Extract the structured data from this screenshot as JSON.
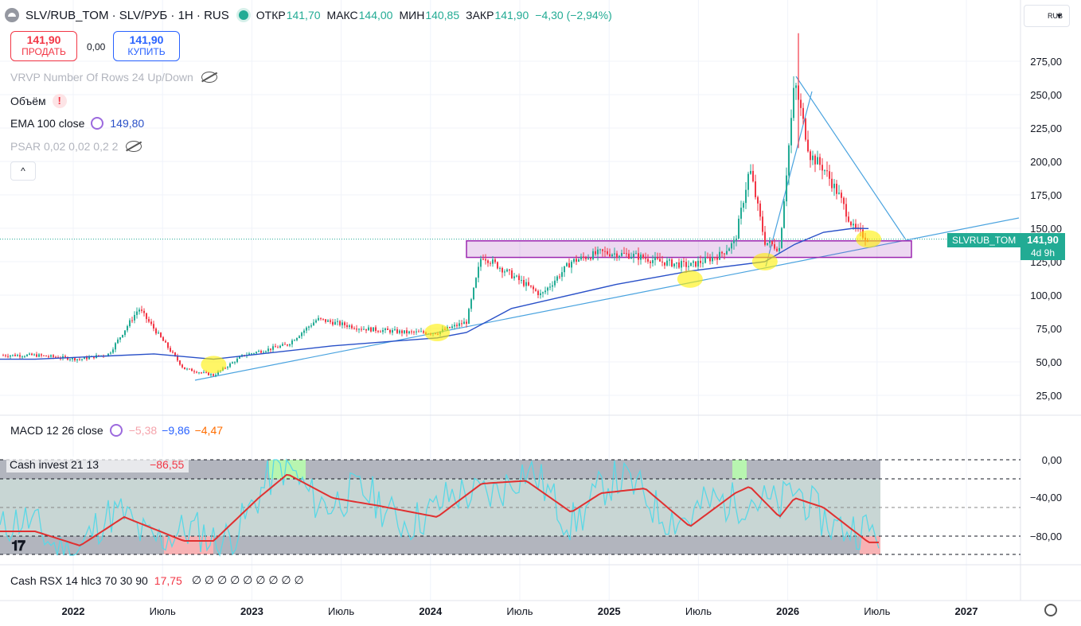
{
  "header": {
    "symbol": "SLV/RUB_TOM · SLV/РУБ · 1H · RUS",
    "open_label": "ОТКР",
    "open_value": "141,70",
    "high_label": "МАКС",
    "high_value": "144,00",
    "low_label": "МИН",
    "low_value": "140,85",
    "close_label": "ЗАКР",
    "close_value": "141,90",
    "change": "−4,30 (−2,94%)",
    "currency": "RUB"
  },
  "trade": {
    "sell_price": "141,90",
    "sell_label": "ПРОДАТЬ",
    "spread": "0,00",
    "buy_price": "141,90",
    "buy_label": "КУПИТЬ"
  },
  "indicators": {
    "vrvp": "VRVP Number Of Rows 24 Up/Down",
    "volume": "Объём",
    "volume_warn": "!",
    "ema_label": "EMA 100 close",
    "ema_value": "149,80",
    "psar": "PSAR 0,02 0,02 0,2 2",
    "collapse": "^"
  },
  "macd": {
    "label": "MACD 12 26 close",
    "v1": "−5,38",
    "v2": "−9,86",
    "v3": "−4,47"
  },
  "cash_invest": {
    "label": "Cash invest 21 13",
    "value": "−86,55"
  },
  "cash_rsx": {
    "label": "Cash RSX 14 hlc3 70 30 90",
    "value": "17,75",
    "zeros": "∅ ∅ ∅ ∅ ∅ ∅ ∅ ∅ ∅"
  },
  "price_tag": {
    "symbol": "SLVRUB_TOM",
    "price": "141,90",
    "countdown": "4d 9h"
  },
  "colors": {
    "up": "#22ab94",
    "down": "#f23645",
    "ema": "#2950c8",
    "trend": "#4aa3df",
    "zone": "#9c27b0",
    "highlight": "#ffff00"
  },
  "chart_data": [
    {
      "type": "line",
      "title": "SLV/RUB_TOM · SLV/РУБ · 1H · RUS",
      "x_ticks": [
        "2022",
        "Июль",
        "2023",
        "Июль",
        "2024",
        "Июль",
        "2025",
        "Июль",
        "2026",
        "Июль",
        "2027"
      ],
      "y_ticks": [
        "25,00",
        "50,00",
        "75,00",
        "100,00",
        "125,00",
        "150,00",
        "175,00",
        "200,00",
        "225,00",
        "250,00",
        "275,00"
      ],
      "ylim": [
        0,
        300
      ],
      "series": [
        {
          "x": [
            "2021-10",
            "2022-01",
            "2022-03",
            "2022-05",
            "2022-08",
            "2022-10",
            "2022-12",
            "2023-03",
            "2023-05",
            "2023-08",
            "2023-11",
            "2024-01",
            "2024-03",
            "2024-04",
            "2024-06",
            "2024-08",
            "2024-10",
            "2024-12",
            "2025-02",
            "2025-04",
            "2025-06",
            "2025-08",
            "2025-09",
            "2025-10",
            "2025-11",
            "2025-12",
            "2026-01",
            "2026-02",
            "2026-03",
            "2026-04",
            "2026-05",
            "2026-06"
          ],
          "values": [
            55,
            52,
            56,
            90,
            45,
            40,
            55,
            63,
            82,
            75,
            72,
            72,
            80,
            130,
            115,
            100,
            125,
            132,
            130,
            125,
            122,
            130,
            140,
            195,
            140,
            135,
            260,
            205,
            195,
            175,
            150,
            142
          ]
        },
        {
          "name": "EMA 100 close",
          "x": [
            "2021-10",
            "2022-06",
            "2022-10",
            "2023-06",
            "2024-01",
            "2024-03",
            "2024-06",
            "2025-01",
            "2025-06",
            "2025-11",
            "2026-01",
            "2026-03",
            "2026-05",
            "2026-06"
          ],
          "values": [
            52,
            56,
            52,
            62,
            68,
            72,
            90,
            108,
            118,
            125,
            138,
            147,
            150,
            149.8
          ]
        }
      ],
      "annotations": {
        "zone": [
          130,
          140
        ],
        "last_price": 141.9
      }
    },
    {
      "type": "line",
      "title": "Cash invest 21 13",
      "y_ticks": [
        "0,00",
        "−40,00",
        "−80,00"
      ],
      "ylim": [
        -100,
        0
      ],
      "series": [
        {
          "x": [
            "2021-10",
            "2022-01",
            "2022-04",
            "2022-08",
            "2022-10",
            "2023-01",
            "2023-03",
            "2023-06",
            "2023-09",
            "2024-01",
            "2024-04",
            "2024-07",
            "2024-10",
            "2024-12",
            "2025-03",
            "2025-06",
            "2025-09",
            "2025-10",
            "2025-12",
            "2026-01",
            "2026-03",
            "2026-06"
          ],
          "values": [
            -75,
            -90,
            -60,
            -85,
            -85,
            -40,
            -15,
            -40,
            -48,
            -60,
            -25,
            -22,
            -55,
            -35,
            -30,
            -70,
            -35,
            -28,
            -60,
            -40,
            -50,
            -86.55
          ]
        }
      ]
    }
  ]
}
